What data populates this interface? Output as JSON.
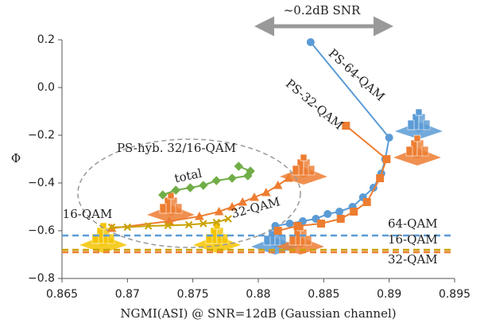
{
  "chart_data": {
    "type": "line",
    "x_label": "NGMI(ASI) @ SNR=12dB (Gaussian channel)",
    "y_label": "Φ",
    "xlim": [
      0.865,
      0.895
    ],
    "xticks": [
      0.865,
      0.87,
      0.875,
      0.88,
      0.885,
      0.89,
      0.895
    ],
    "ylim": [
      -0.8,
      0.2
    ],
    "yticks": [
      {
        "value": 0.2,
        "label": "0.2"
      },
      {
        "value": 0,
        "label": "0.0"
      },
      {
        "value": -0.2,
        "label": "−0.2"
      },
      {
        "value": -0.4,
        "label": "−0.4"
      },
      {
        "value": -0.6,
        "label": "−0.6"
      },
      {
        "value": -0.8,
        "label": "−0.8"
      }
    ],
    "series": [
      {
        "name": "PS-64-QAM",
        "color": "#5b9bd5",
        "marker": "circle",
        "x": [
          0.8813,
          0.8824,
          0.8834,
          0.8844,
          0.8853,
          0.8862,
          0.8872,
          0.888,
          0.8888,
          0.8894,
          0.8897,
          0.89,
          0.884
        ],
        "values": [
          -0.58,
          -0.57,
          -0.56,
          -0.55,
          -0.53,
          -0.52,
          -0.5,
          -0.46,
          -0.42,
          -0.36,
          -0.3,
          -0.21,
          0.19
        ]
      },
      {
        "name": "PS-32-QAM",
        "color": "#ed7d31",
        "marker": "square",
        "x": [
          0.8815,
          0.883,
          0.8848,
          0.8863,
          0.8873,
          0.8883,
          0.8893,
          0.8898,
          0.8867
        ],
        "values": [
          -0.6,
          -0.58,
          -0.57,
          -0.55,
          -0.52,
          -0.48,
          -0.38,
          -0.3,
          -0.16
        ]
      },
      {
        "name": "total",
        "color": "#70ad47",
        "marker": "diamond",
        "x": [
          0.8727,
          0.8737,
          0.8748,
          0.8758,
          0.8768,
          0.878,
          0.8792,
          0.8794,
          0.8785
        ],
        "values": [
          -0.45,
          -0.43,
          -0.42,
          -0.41,
          -0.39,
          -0.38,
          -0.37,
          -0.35,
          -0.33
        ]
      },
      {
        "name": "32-QAM",
        "color": "#ed7d31",
        "marker": "triangle",
        "x": [
          0.8688,
          0.8732,
          0.8755,
          0.877,
          0.878,
          0.8788,
          0.8797,
          0.8806,
          0.8815,
          0.8823
        ],
        "values": [
          -0.59,
          -0.56,
          -0.54,
          -0.52,
          -0.5,
          -0.48,
          -0.46,
          -0.44,
          -0.41,
          -0.38
        ]
      },
      {
        "name": "16-QAM",
        "color": "#c9a200",
        "marker": "cross",
        "x": [
          0.8688,
          0.87,
          0.8716,
          0.8731,
          0.8747,
          0.8758,
          0.8768,
          0.8777
        ],
        "values": [
          -0.585,
          -0.585,
          -0.58,
          -0.578,
          -0.575,
          -0.57,
          -0.565,
          -0.55
        ]
      }
    ],
    "reference_lines": [
      {
        "label": "64-QAM",
        "value": -0.62,
        "color": "#5b9bd5"
      },
      {
        "label": "16-QAM",
        "value": -0.68,
        "color": "#c9a200"
      },
      {
        "label": "32-QAM",
        "value": -0.69,
        "color": "#ed7d31"
      }
    ],
    "annotations": {
      "snr_gap": "~0.2dB SNR",
      "hybrid_group": "PS-hyb. 32/16-QAM"
    }
  }
}
